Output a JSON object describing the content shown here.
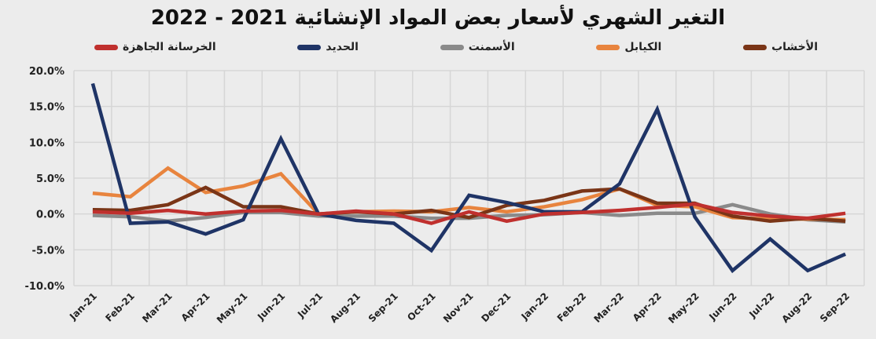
{
  "chart_data": {
    "type": "line",
    "title": "التغير الشهري لأسعار بعض المواد الإنشائية 2021 - 2022",
    "x": [
      "Jan-21",
      "Feb-21",
      "Mar-21",
      "Apr-21",
      "May-21",
      "Jun-21",
      "Jul-21",
      "Aug-21",
      "Sep-21",
      "Oct-21",
      "Nov-21",
      "Dec-21",
      "Jan-22",
      "Feb-22",
      "Mar-22",
      "Apr-22",
      "May-22",
      "Jun-22",
      "Jul-22",
      "Aug-22",
      "Sep-22"
    ],
    "ylim": [
      -10,
      20
    ],
    "yticks": [
      "-10.0%",
      "-5.0%",
      "0.0%",
      "5.0%",
      "10.0%",
      "15.0%",
      "20.0%"
    ],
    "grid": true,
    "legend_placement": "top",
    "series": [
      {
        "name": "الخرسانة الجاهزة",
        "color": "#c0302e",
        "values": [
          0.3,
          0.1,
          0.5,
          0.0,
          0.4,
          0.5,
          0.0,
          0.4,
          0.0,
          -1.3,
          0.3,
          -1.0,
          0.0,
          0.2,
          0.5,
          0.9,
          1.4,
          0.2,
          -0.3,
          -0.6,
          0.1
        ]
      },
      {
        "name": "الحديد",
        "color": "#1f3466",
        "values": [
          18.2,
          -1.3,
          -1.1,
          -2.8,
          -0.8,
          10.5,
          0.0,
          -0.9,
          -1.3,
          -5.1,
          2.6,
          1.6,
          0.3,
          0.3,
          4.2,
          14.6,
          -0.4,
          -7.9,
          -3.5,
          -7.9,
          -5.6
        ]
      },
      {
        "name": "الأسمنت",
        "color": "#8a8a8a",
        "values": [
          -0.2,
          -0.4,
          -1.0,
          -0.5,
          0.2,
          0.2,
          -0.3,
          -0.3,
          -0.3,
          -0.6,
          -0.6,
          -0.2,
          -0.1,
          0.2,
          -0.2,
          0.1,
          0.1,
          1.3,
          0.0,
          -0.8,
          -1.1
        ]
      },
      {
        "name": "الكيابل",
        "color": "#e8843e",
        "values": [
          2.9,
          2.4,
          6.4,
          3.0,
          3.9,
          5.6,
          0.0,
          0.3,
          0.4,
          0.3,
          0.9,
          0.3,
          1.0,
          2.0,
          3.5,
          1.2,
          1.0,
          -0.5,
          -0.7,
          -0.7,
          -0.8
        ]
      },
      {
        "name": "الأخشاب",
        "color": "#7a3517",
        "values": [
          0.6,
          0.5,
          1.3,
          3.7,
          1.0,
          1.0,
          0.0,
          0.3,
          0.0,
          0.5,
          -0.5,
          1.2,
          1.9,
          3.2,
          3.5,
          1.5,
          1.5,
          -0.3,
          -1.0,
          -0.6,
          -1.0
        ]
      }
    ]
  }
}
